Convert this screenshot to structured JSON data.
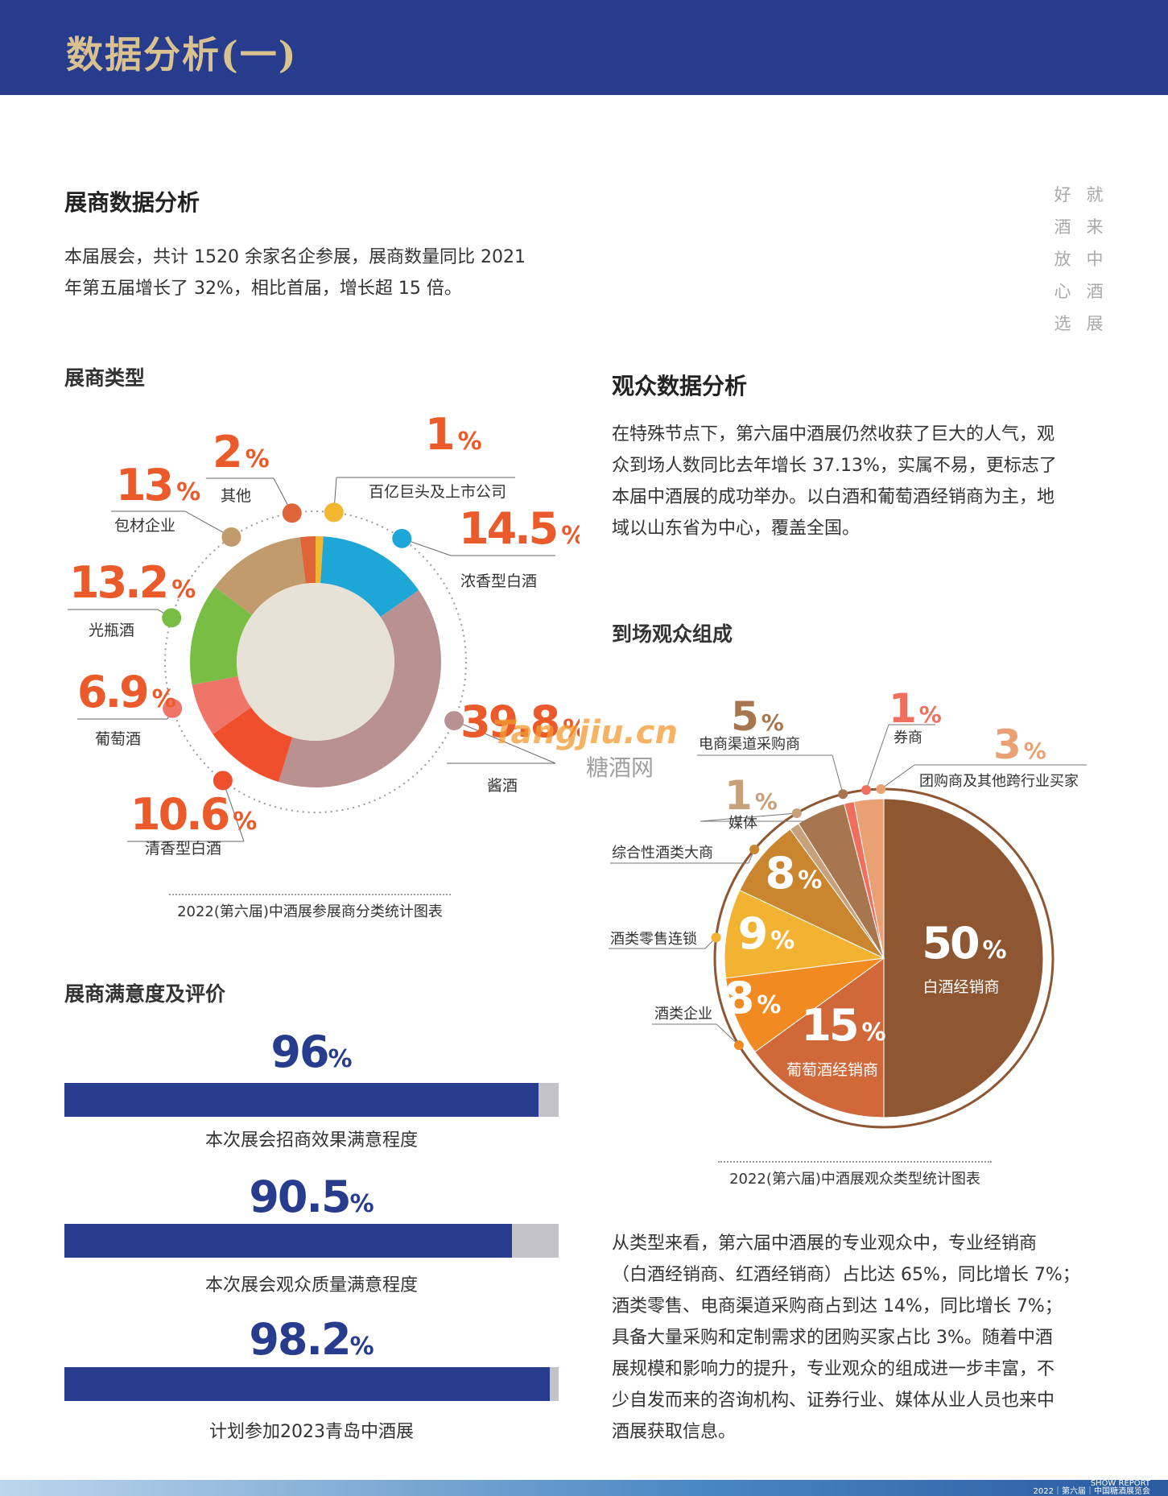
{
  "header": {
    "title": "数据分析(一)"
  },
  "slogan": {
    "col1": [
      "好",
      "酒",
      "放",
      "心",
      "选"
    ],
    "col2": [
      "就",
      "来",
      "中",
      "酒",
      "展"
    ]
  },
  "exhibitor": {
    "title": "展商数据分析",
    "intro_line1": "本届展会，共计 1520 余家名企参展，展商数量同比 2021",
    "intro_line2": "年第五届增长了 32%，相比首届，增长超 15 倍。",
    "types_title": "展商类型",
    "satisfaction_title": "展商满意度及评价"
  },
  "audience": {
    "title": "观众数据分析",
    "intro_lines": [
      "在特殊节点下，第六届中酒展仍然收获了巨大的人气，观",
      "众到场人数同比去年增长 37.13%，实属不易，更标志了",
      "本届中酒展的成功举办。以白酒和葡萄酒经销商为主，地",
      "域以山东省为中心，覆盖全国。"
    ],
    "composition_title": "到场观众组成",
    "summary_lines": [
      "从类型来看，第六届中酒展的专业观众中，专业经销商",
      "（白酒经销商、红酒经销商）占比达 65%，同比增长 7%；",
      "酒类零售、电商渠道采购商占到达 14%，同比增长 7%；",
      "具备大量采购和定制需求的团购买家占比 3%。随着中酒",
      "展规模和影响力的提升，专业观众的组成进一步丰富，不",
      "少自发而来的咨询机构、证券行业、媒体从业人员也来中",
      "酒展获取信息。"
    ]
  },
  "watermark": {
    "brand": "Tangjiu.cn",
    "cn": "糖酒网"
  },
  "footer": {
    "line1": "SHOW REPORT",
    "line2": "2022｜第六届｜中国糖酒展览会"
  },
  "chart_data": [
    {
      "type": "pie",
      "variant": "donut",
      "caption": "2022(第六届)中酒展参展商分类统计图表",
      "unit": "%",
      "slices": [
        {
          "label": "百亿巨头及上市公司",
          "value": 1,
          "value_text": "1",
          "color": "#f2b631"
        },
        {
          "label": "浓香型白酒",
          "value": 14.5,
          "value_text": "14.5",
          "color": "#1ea6d6"
        },
        {
          "label": "酱酒",
          "value": 39.8,
          "value_text": "39.8",
          "color": "#b89190"
        },
        {
          "label": "清香型白酒",
          "value": 10.6,
          "value_text": "10.6",
          "color": "#ef4f2c"
        },
        {
          "label": "葡萄酒",
          "value": 6.9,
          "value_text": "6.9",
          "color": "#f07569"
        },
        {
          "label": "光瓶酒",
          "value": 13.2,
          "value_text": "13.2",
          "color": "#78be44"
        },
        {
          "label": "包材企业",
          "value": 13,
          "value_text": "13",
          "color": "#c29b6c"
        },
        {
          "label": "其他",
          "value": 2,
          "value_text": "2",
          "color": "#e0643a"
        }
      ]
    },
    {
      "type": "pie",
      "caption": "2022(第六届)中酒展观众类型统计图表",
      "unit": "%",
      "slices": [
        {
          "label": "白酒经销商",
          "value": 50,
          "color": "#8e5631"
        },
        {
          "label": "葡萄酒经销商",
          "value": 15,
          "color": "#d1683a"
        },
        {
          "label": "酒类企业",
          "value": 8,
          "color": "#f28a22"
        },
        {
          "label": "酒类零售连锁",
          "value": 9,
          "color": "#f2b333"
        },
        {
          "label": "综合性酒类大商",
          "value": 8,
          "color": "#c9862f"
        },
        {
          "label": "媒体",
          "value": 1,
          "color": "#c7a07c"
        },
        {
          "label": "电商渠道采购商",
          "value": 5,
          "color": "#a8764e"
        },
        {
          "label": "券商",
          "value": 1,
          "color": "#ef6e5d"
        },
        {
          "label": "团购商及其他跨行业买家",
          "value": 3,
          "color": "#e9a173"
        }
      ]
    },
    {
      "type": "bar",
      "orientation": "horizontal",
      "xlim": [
        0,
        100
      ],
      "unit": "%",
      "categories": [
        "本次展会招商效果满意程度",
        "本次展会观众质量满意程度",
        "计划参加2023青岛中酒展"
      ],
      "values": [
        96,
        90.5,
        98.2
      ],
      "value_texts": [
        "96",
        "90.5",
        "98.2"
      ]
    }
  ]
}
